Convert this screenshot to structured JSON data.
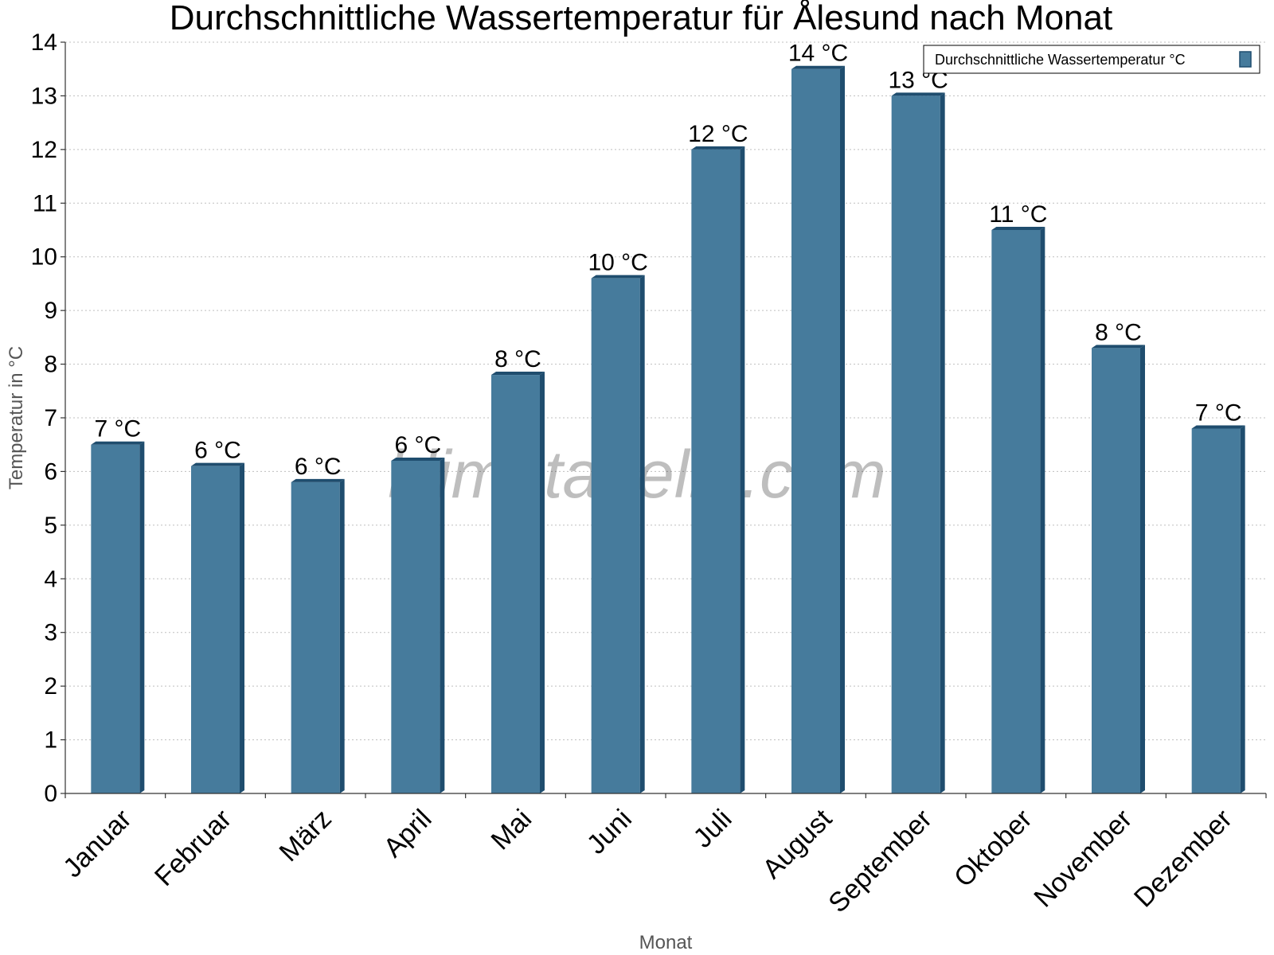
{
  "chart_data": {
    "type": "bar",
    "title": "Durchschnittliche Wassertemperatur für Ålesund nach Monat",
    "xlabel": "Monat",
    "ylabel": "Temperatur in °C",
    "ylim": [
      0,
      14
    ],
    "yticks": [
      0,
      1,
      2,
      3,
      4,
      5,
      6,
      7,
      8,
      9,
      10,
      11,
      12,
      13,
      14
    ],
    "grid": true,
    "legend_position": "top-right",
    "categories": [
      "Januar",
      "Februar",
      "März",
      "April",
      "Mai",
      "Juni",
      "Juli",
      "August",
      "September",
      "Oktober",
      "November",
      "Dezember"
    ],
    "series": [
      {
        "name": "Durchschnittliche Wassertemperatur °C",
        "color": "#467b9c",
        "values": [
          6.5,
          6.1,
          5.8,
          6.2,
          7.8,
          9.6,
          12.0,
          13.5,
          13.0,
          10.5,
          8.3,
          6.8
        ],
        "data_labels": [
          "7 °C",
          "6 °C",
          "6 °C",
          "6 °C",
          "8 °C",
          "10 °C",
          "12 °C",
          "14 °C",
          "13 °C",
          "11 °C",
          "8 °C",
          "7 °C"
        ]
      }
    ]
  },
  "watermark": "klimatabelle.com",
  "colors": {
    "bar": "#467b9c",
    "bar_edge": "#1f4d6e"
  }
}
